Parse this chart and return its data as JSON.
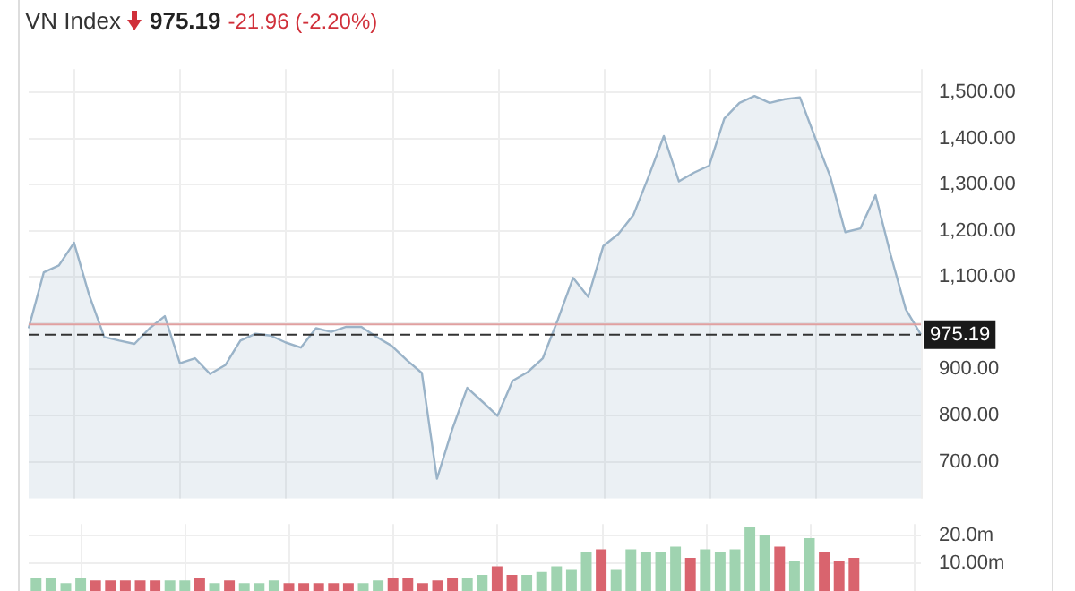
{
  "chart_data": [
    {
      "type": "area",
      "title": "VN Index",
      "annotations": [
        "975.19",
        "-21.96 (-2.20%)"
      ],
      "categories": [
        null,
        null,
        null,
        null,
        null,
        null,
        null,
        null,
        null,
        null,
        null,
        null,
        null,
        null,
        null,
        null,
        null,
        null,
        null,
        null,
        null,
        null,
        null,
        null,
        null,
        null,
        null,
        null,
        null,
        null,
        null,
        null,
        null,
        null,
        null,
        null,
        null,
        null,
        null,
        null,
        null,
        null,
        null,
        null,
        null,
        null,
        null,
        null,
        null,
        null,
        null,
        null,
        null,
        null,
        null,
        null,
        null,
        null,
        null,
        null
      ],
      "series": [
        {
          "color": "#9ab3c8",
          "values": [
            989,
            1110,
            1125,
            1174,
            1061,
            970,
            962,
            955,
            989,
            1015,
            913,
            924,
            890,
            909,
            962,
            977,
            973,
            958,
            947,
            989,
            981,
            992,
            992,
            970,
            951,
            920,
            892,
            663,
            769,
            860,
            830,
            799,
            875,
            894,
            924,
            1008,
            1098,
            1057,
            1167,
            1193,
            1235,
            1318,
            1405,
            1307,
            1326,
            1341,
            1443,
            1477,
            1492,
            1477,
            1485,
            1489,
            1402,
            1318,
            1197,
            1205,
            1277,
            1148,
            1030,
            975
          ]
        }
      ],
      "ylim": [
        620,
        1550
      ],
      "yticks": [
        {
          "value": 700,
          "label": "700.00"
        },
        {
          "value": 800,
          "label": "800.00"
        },
        {
          "value": 900,
          "label": "900.00"
        },
        {
          "value": 1000,
          "label": null
        },
        {
          "value": 1100,
          "label": "1,100.00"
        },
        {
          "value": 1200,
          "label": "1,200.00"
        },
        {
          "value": 1300,
          "label": "1,300.00"
        },
        {
          "value": 1400,
          "label": "1,400.00"
        },
        {
          "value": 1500,
          "label": "1,500.00"
        }
      ],
      "ref_lines": [
        {
          "axis": "y",
          "value": 997.15,
          "color": "#e0a0a0",
          "line_style": "solid"
        },
        {
          "axis": "y",
          "value": 975.19,
          "label": "975.19",
          "color": "#333333",
          "line_style": "dashed"
        }
      ],
      "grid": true
    },
    {
      "type": "bar",
      "categories": [
        null,
        null,
        null,
        null,
        null,
        null,
        null,
        null,
        null,
        null,
        null,
        null,
        null,
        null,
        null,
        null,
        null,
        null,
        null,
        null,
        null,
        null,
        null,
        null,
        null,
        null,
        null,
        null,
        null,
        null,
        null,
        null,
        null,
        null,
        null,
        null,
        null,
        null,
        null,
        null,
        null,
        null,
        null,
        null,
        null,
        null,
        null,
        null,
        null,
        null,
        null,
        null,
        null,
        null,
        null,
        null,
        null,
        null,
        null,
        null
      ],
      "values": [
        5,
        5,
        3,
        5,
        4,
        4,
        4,
        4,
        4,
        4,
        4,
        5,
        3,
        4,
        3,
        3,
        4,
        3,
        3,
        3,
        3,
        3,
        3,
        4,
        5,
        5,
        3,
        4,
        5,
        5,
        6,
        9,
        6,
        6,
        7,
        9,
        8,
        14,
        15,
        8,
        15,
        14,
        14,
        16,
        12,
        15,
        14,
        15,
        23,
        20,
        16,
        11,
        19,
        14,
        11,
        12,
        null,
        null,
        null,
        null
      ],
      "colors": [
        "#9fd3b0",
        "#9fd3b0",
        "#9fd3b0",
        "#9fd3b0",
        "#d9646e",
        "#d9646e",
        "#d9646e",
        "#d9646e",
        "#d9646e",
        "#9fd3b0",
        "#9fd3b0",
        "#d9646e",
        "#9fd3b0",
        "#d9646e",
        "#9fd3b0",
        "#9fd3b0",
        "#9fd3b0",
        "#d9646e",
        "#d9646e",
        "#d9646e",
        "#d9646e",
        "#d9646e",
        "#9fd3b0",
        "#9fd3b0",
        "#d9646e",
        "#d9646e",
        "#d9646e",
        "#d9646e",
        "#d9646e",
        "#9fd3b0",
        "#9fd3b0",
        "#d9646e",
        "#d9646e",
        "#9fd3b0",
        "#9fd3b0",
        "#9fd3b0",
        "#9fd3b0",
        "#9fd3b0",
        "#d9646e",
        "#9fd3b0",
        "#9fd3b0",
        "#9fd3b0",
        "#9fd3b0",
        "#9fd3b0",
        "#d9646e",
        "#9fd3b0",
        "#9fd3b0",
        "#9fd3b0",
        "#9fd3b0",
        "#9fd3b0",
        "#d9646e",
        "#9fd3b0",
        "#9fd3b0",
        "#d9646e",
        "#d9646e",
        "#d9646e",
        "#9fd3b0",
        "#9fd3b0",
        "#9fd3b0",
        "#9fd3b0"
      ],
      "ylim": [
        0,
        24
      ],
      "yticks": [
        {
          "value": 10,
          "label": "10.00m"
        },
        {
          "value": 20,
          "label": "20.0m"
        }
      ],
      "grid": true
    }
  ]
}
